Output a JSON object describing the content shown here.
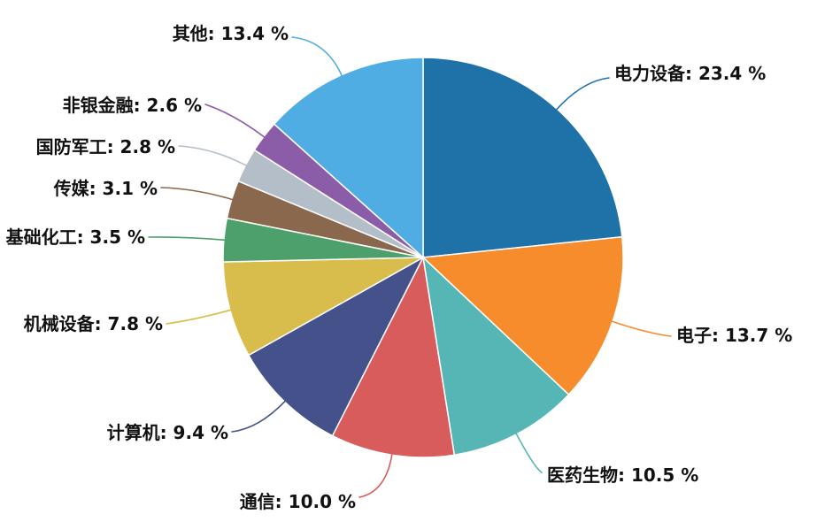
{
  "chart_data": {
    "type": "pie",
    "title": "",
    "unit": "%",
    "start_angle": "12-o-clock",
    "direction": "clockwise",
    "legend_position": "none",
    "categories": [
      "电力设备",
      "电子",
      "医药生物",
      "通信",
      "计算机",
      "机械设备",
      "基础化工",
      "传媒",
      "国防军工",
      "非银金融",
      "其他"
    ],
    "values": [
      23.4,
      13.7,
      10.5,
      10.0,
      9.4,
      7.8,
      3.5,
      3.1,
      2.8,
      2.6,
      13.4
    ],
    "labels": [
      "电力设备: 23.4 %",
      "电子: 13.7 %",
      "医药生物: 10.5 %",
      "通信: 10.0 %",
      "计算机: 9.4 %",
      "机械设备: 7.8 %",
      "基础化工: 3.5 %",
      "传媒: 3.1 %",
      "国防军工: 2.8 %",
      "非银金融: 2.6 %",
      "其他: 13.4 %"
    ],
    "colors": [
      "#1F72A8",
      "#F68C2C",
      "#56B5B5",
      "#D95C5C",
      "#44518B",
      "#D8BD4D",
      "#4DA06C",
      "#8A684D",
      "#B4BEC8",
      "#8B5CA8",
      "#4FADE3"
    ],
    "label_text_color": "#111111",
    "slice_border_color": "#ffffff"
  }
}
